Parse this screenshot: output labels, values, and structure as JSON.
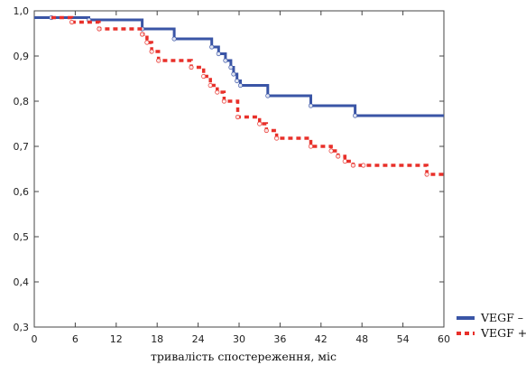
{
  "chart_data": {
    "type": "line",
    "step": true,
    "xlabel": "тривалість спостереження, міс",
    "ylabel": "",
    "xlim": [
      0,
      60
    ],
    "ylim": [
      0.3,
      1.0
    ],
    "x_ticks": [
      0,
      6,
      12,
      18,
      24,
      30,
      36,
      42,
      48,
      54,
      60
    ],
    "y_ticks": [
      0.3,
      0.4,
      0.5,
      0.6,
      0.7,
      0.8,
      0.9,
      1.0
    ],
    "y_tick_labels": [
      "0,3",
      "0,4",
      "0,5",
      "0,6",
      "0,7",
      "0,8",
      "0,9",
      "1,0"
    ],
    "x_tick_labels": [
      "0",
      "6",
      "12",
      "18",
      "24",
      "30",
      "36",
      "42",
      "48",
      "54",
      "60"
    ],
    "grid": false,
    "legend_position": "bottom-right",
    "series": [
      {
        "name": "VEGF –",
        "color": "#3a55a6",
        "style": "solid",
        "x": [
          0,
          2.5,
          8,
          15.8,
          20.5,
          26,
          27,
          28,
          28.8,
          29.2,
          29.7,
          30.2,
          34.2,
          40.5,
          47,
          60
        ],
        "y": [
          0.985,
          0.985,
          0.98,
          0.96,
          0.938,
          0.92,
          0.905,
          0.89,
          0.875,
          0.86,
          0.845,
          0.835,
          0.812,
          0.79,
          0.768,
          0.768
        ]
      },
      {
        "name": "VEGF +",
        "color": "#e8302a",
        "style": "dashed",
        "x": [
          2.5,
          5.5,
          9.5,
          15.8,
          16.5,
          17.2,
          18.2,
          23,
          24.8,
          25.8,
          26.8,
          27.8,
          29.8,
          33,
          34,
          35.5,
          40.5,
          43.5,
          44.5,
          45.5,
          46.7,
          48.2,
          57.5,
          60
        ],
        "y": [
          0.985,
          0.975,
          0.96,
          0.948,
          0.93,
          0.91,
          0.89,
          0.875,
          0.855,
          0.835,
          0.82,
          0.8,
          0.765,
          0.75,
          0.735,
          0.718,
          0.7,
          0.69,
          0.678,
          0.667,
          0.658,
          0.658,
          0.638,
          0.638
        ]
      }
    ]
  }
}
